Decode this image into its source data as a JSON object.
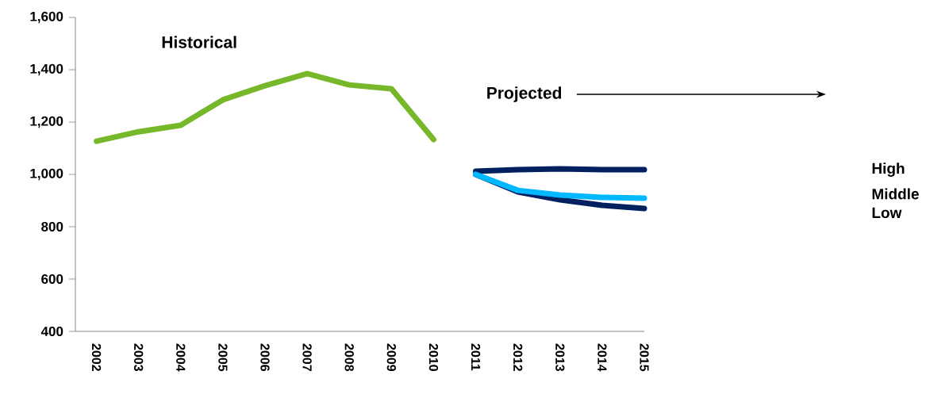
{
  "chart_data": {
    "type": "line",
    "categories": [
      "2002",
      "2003",
      "2004",
      "2005",
      "2006",
      "2007",
      "2008",
      "2009",
      "2010",
      "2011",
      "2012",
      "2013",
      "2014",
      "2015"
    ],
    "series": [
      {
        "color": "#76b82a",
        "values": [
          1127,
          1163,
          1188,
          1285,
          1339,
          1385,
          1342,
          1327,
          1133,
          null,
          null,
          null,
          null,
          null
        ]
      },
      {
        "name": "High",
        "color": "#002060",
        "values": [
          null,
          null,
          null,
          null,
          null,
          null,
          null,
          null,
          null,
          1012,
          1018,
          1021,
          1018,
          1018
        ]
      },
      {
        "name": "Low",
        "color": "#002060",
        "values": [
          null,
          null,
          null,
          null,
          null,
          null,
          null,
          null,
          null,
          1000,
          933,
          903,
          882,
          870
        ]
      },
      {
        "name": "Middle",
        "color": "#00b8ff",
        "values": [
          null,
          null,
          null,
          null,
          null,
          null,
          null,
          null,
          null,
          1000,
          939,
          921,
          912,
          909
        ]
      }
    ],
    "ylim": [
      400,
      1600
    ],
    "yticks": [
      {
        "value": 400,
        "label": "400"
      },
      {
        "value": 600,
        "label": "600"
      },
      {
        "value": 800,
        "label": "800"
      },
      {
        "value": 1000,
        "label": "1,000"
      },
      {
        "value": 1200,
        "label": "1,200"
      },
      {
        "value": 1400,
        "label": "1,400"
      },
      {
        "value": 1600,
        "label": "1,600"
      }
    ],
    "annotations": [
      "Historical",
      "Projected"
    ],
    "legend": false,
    "grid": false,
    "marker": "none",
    "line_style": "solid"
  }
}
